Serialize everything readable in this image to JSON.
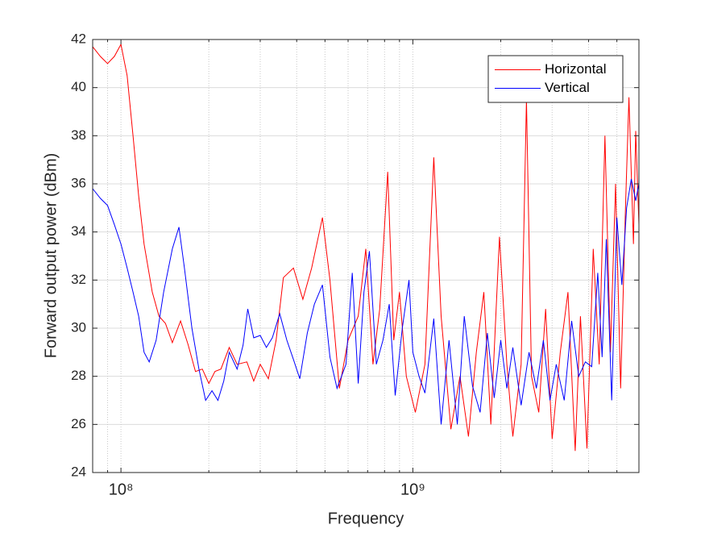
{
  "chart_data": {
    "type": "line",
    "xlabel": "Frequency",
    "ylabel": "Forward output power (dBm)",
    "xscale": "log",
    "xlim": [
      80000000,
      5950000000
    ],
    "ylim": [
      24,
      42
    ],
    "xticks": [
      {
        "value": 100000000,
        "label": "10⁸"
      },
      {
        "value": 1000000000,
        "label": "10⁹"
      }
    ],
    "xminorticks": [
      90000000,
      200000000,
      300000000,
      400000000,
      500000000,
      600000000,
      700000000,
      800000000,
      900000000,
      2000000000,
      3000000000,
      4000000000,
      5000000000
    ],
    "yticks": [
      24,
      26,
      28,
      30,
      32,
      34,
      36,
      38,
      40,
      42
    ],
    "grid": true,
    "legend": "northeast",
    "series": [
      {
        "name": "Horizontal",
        "color": "#ff0000",
        "x": [
          80000000,
          85000000,
          90000000,
          95000000,
          100000000,
          105000000,
          110000000,
          115000000,
          120000000,
          128000000,
          135000000,
          142000000,
          150000000,
          160000000,
          170000000,
          180000000,
          190000000,
          200000000,
          210000000,
          220000000,
          235000000,
          250000000,
          270000000,
          285000000,
          300000000,
          320000000,
          340000000,
          360000000,
          390000000,
          420000000,
          450000000,
          490000000,
          520000000,
          560000000,
          600000000,
          650000000,
          690000000,
          730000000,
          770000000,
          820000000,
          860000000,
          900000000,
          950000000,
          1020000000,
          1100000000,
          1180000000,
          1250000000,
          1350000000,
          1450000000,
          1550000000,
          1650000000,
          1750000000,
          1850000000,
          1980000000,
          2100000000,
          2200000000,
          2350000000,
          2450000000,
          2550000000,
          2700000000,
          2850000000,
          3000000000,
          3200000000,
          3400000000,
          3600000000,
          3750000000,
          3950000000,
          4150000000,
          4350000000,
          4550000000,
          4750000000,
          4950000000,
          5150000000,
          5350000000,
          5500000000,
          5700000000,
          5800000000,
          5950000000
        ],
        "values": [
          41.7,
          41.3,
          41.0,
          41.3,
          41.8,
          40.5,
          38.0,
          35.5,
          33.5,
          31.5,
          30.5,
          30.2,
          29.4,
          30.3,
          29.3,
          28.2,
          28.3,
          27.7,
          28.2,
          28.3,
          29.2,
          28.5,
          28.6,
          27.8,
          28.5,
          27.9,
          29.5,
          32.1,
          32.5,
          31.2,
          32.5,
          34.6,
          32.0,
          27.5,
          29.5,
          30.5,
          33.3,
          28.5,
          30.8,
          36.5,
          29.5,
          31.5,
          28.0,
          26.5,
          28.5,
          37.1,
          30.5,
          25.8,
          28.0,
          25.5,
          29.0,
          31.5,
          26.0,
          33.8,
          28.5,
          25.5,
          28.5,
          39.5,
          28.0,
          26.5,
          30.8,
          25.4,
          29.0,
          31.5,
          24.9,
          30.5,
          25.0,
          33.3,
          28.5,
          38.0,
          29.0,
          36.0,
          27.5,
          35.0,
          39.6,
          33.5,
          38.2,
          34.3
        ]
      },
      {
        "name": "Vertical",
        "color": "#0000ff",
        "x": [
          80000000,
          85000000,
          90000000,
          95000000,
          100000000,
          105000000,
          110000000,
          115000000,
          120000000,
          125000000,
          132000000,
          140000000,
          150000000,
          158000000,
          165000000,
          175000000,
          185000000,
          195000000,
          205000000,
          215000000,
          225000000,
          235000000,
          250000000,
          262000000,
          272000000,
          285000000,
          300000000,
          315000000,
          330000000,
          350000000,
          370000000,
          390000000,
          410000000,
          435000000,
          460000000,
          490000000,
          520000000,
          550000000,
          590000000,
          620000000,
          650000000,
          680000000,
          710000000,
          750000000,
          790000000,
          830000000,
          870000000,
          920000000,
          970000000,
          1000000000,
          1050000000,
          1100000000,
          1180000000,
          1250000000,
          1330000000,
          1420000000,
          1500000000,
          1600000000,
          1700000000,
          1800000000,
          1900000000,
          2000000000,
          2100000000,
          2200000000,
          2350000000,
          2500000000,
          2650000000,
          2800000000,
          2950000000,
          3100000000,
          3300000000,
          3500000000,
          3700000000,
          3900000000,
          4100000000,
          4300000000,
          4450000000,
          4600000000,
          4800000000,
          5000000000,
          5200000000,
          5400000000,
          5600000000,
          5800000000,
          5950000000
        ],
        "values": [
          35.8,
          35.4,
          35.1,
          34.3,
          33.5,
          32.5,
          31.5,
          30.5,
          29.0,
          28.6,
          29.5,
          31.5,
          33.3,
          34.2,
          32.5,
          30.0,
          28.3,
          27.0,
          27.4,
          27.0,
          27.8,
          29.0,
          28.3,
          29.3,
          30.8,
          29.6,
          29.7,
          29.2,
          29.6,
          30.6,
          29.5,
          28.7,
          27.9,
          29.8,
          31.0,
          31.8,
          28.8,
          27.5,
          28.5,
          32.3,
          27.7,
          31.5,
          33.2,
          28.5,
          29.5,
          31.0,
          27.2,
          30.0,
          32.0,
          29.0,
          28.0,
          27.3,
          30.4,
          26.0,
          29.5,
          26.0,
          30.5,
          27.6,
          26.5,
          29.8,
          27.1,
          29.5,
          27.5,
          29.2,
          26.8,
          29.0,
          27.5,
          29.5,
          27.0,
          28.5,
          27.0,
          30.3,
          28.0,
          28.6,
          28.4,
          32.3,
          28.8,
          33.7,
          27.0,
          34.6,
          31.8,
          35.0,
          36.2,
          35.3,
          36.0
        ]
      }
    ]
  }
}
